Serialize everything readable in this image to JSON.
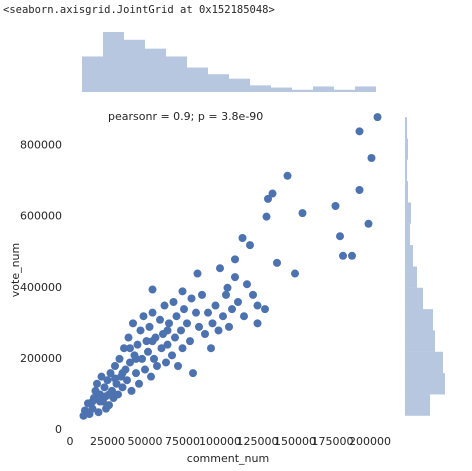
{
  "header": "<seaborn.axisgrid.JointGrid at 0x152185048>",
  "chart_data": {
    "type": "scatter",
    "annotation": "pearsonr = 0.9; p = 3.8e-90",
    "x_label": "comment_num",
    "y_label": "vote_num",
    "color": "#4c72b0",
    "hist_color": "#4c72b0",
    "xlim": [
      0,
      210000
    ],
    "ylim": [
      0,
      900000
    ],
    "xticks": [
      0,
      25000,
      50000,
      75000,
      100000,
      125000,
      150000,
      175000,
      200000
    ],
    "yticks": [
      0,
      200000,
      400000,
      600000,
      800000
    ],
    "grid": false,
    "x": [
      9000,
      10000,
      12000,
      13000,
      15000,
      16000,
      17000,
      18000,
      19000,
      20000,
      21000,
      22000,
      23000,
      24000,
      25000,
      26000,
      27000,
      28000,
      29000,
      30000,
      31000,
      32000,
      33000,
      34000,
      35000,
      36000,
      37000,
      38000,
      39000,
      40000,
      41000,
      42000,
      43000,
      44000,
      45000,
      46000,
      47000,
      48000,
      49000,
      50000,
      51000,
      52000,
      53000,
      54000,
      55000,
      56000,
      57000,
      58000,
      60000,
      61000,
      62000,
      63000,
      64000,
      65000,
      66000,
      68000,
      69000,
      70000,
      71000,
      72000,
      74000,
      75000,
      76000,
      78000,
      80000,
      81000,
      82000,
      84000,
      86000,
      88000,
      90000,
      92000,
      94000,
      95000,
      97000,
      99000,
      102000,
      104000,
      106000,
      108000,
      112000,
      116000,
      118000,
      122000,
      125000,
      30000,
      26000,
      20000,
      35000,
      44000,
      24000,
      15000,
      40000,
      55000,
      65000,
      205000,
      193000,
      201000,
      145000,
      135000,
      177000,
      193000,
      132000,
      131000,
      155000,
      199000,
      180000,
      182000,
      188000,
      115000,
      120000,
      138000,
      150000,
      110000,
      100000,
      85000,
      55000,
      75000,
      125000,
      130000,
      105000,
      110000
    ],
    "y": [
      40000,
      55000,
      75000,
      45000,
      60000,
      90000,
      110000,
      130000,
      50000,
      100000,
      150000,
      80000,
      120000,
      95000,
      140000,
      70000,
      160000,
      110000,
      90000,
      180000,
      130000,
      100000,
      200000,
      150000,
      120000,
      230000,
      170000,
      140000,
      260000,
      190000,
      110000,
      300000,
      210000,
      160000,
      240000,
      130000,
      280000,
      200000,
      320000,
      170000,
      250000,
      220000,
      290000,
      150000,
      330000,
      200000,
      260000,
      180000,
      310000,
      230000,
      270000,
      350000,
      190000,
      240000,
      300000,
      210000,
      360000,
      260000,
      320000,
      180000,
      280000,
      230000,
      340000,
      300000,
      250000,
      370000,
      160000,
      330000,
      290000,
      380000,
      270000,
      330000,
      230000,
      300000,
      350000,
      280000,
      320000,
      380000,
      290000,
      340000,
      360000,
      320000,
      410000,
      380000,
      300000,
      145000,
      100000,
      80000,
      160000,
      200000,
      60000,
      80000,
      230000,
      250000,
      280000,
      880000,
      840000,
      765000,
      715000,
      665000,
      630000,
      675000,
      650000,
      600000,
      610000,
      580000,
      545000,
      490000,
      490000,
      540000,
      520000,
      470000,
      440000,
      480000,
      455000,
      440000,
      395000,
      390000,
      350000,
      340000,
      400000,
      430000
    ],
    "x_hist": {
      "bins": [
        8000,
        22000,
        36000,
        50000,
        64000,
        78000,
        92000,
        106000,
        120000,
        134000,
        148000,
        162000,
        176000,
        190000,
        204000
      ],
      "counts": [
        32,
        54,
        47,
        39,
        32,
        22,
        16,
        12,
        6,
        4,
        2,
        5,
        2,
        5
      ]
    },
    "y_hist": {
      "bins": [
        40000,
        100000,
        160000,
        220000,
        280000,
        340000,
        400000,
        460000,
        520000,
        580000,
        640000,
        700000,
        760000,
        820000,
        880000
      ],
      "counts": [
        25,
        40,
        38,
        30,
        28,
        18,
        12,
        8,
        5,
        6,
        3,
        2,
        3,
        2
      ]
    }
  }
}
